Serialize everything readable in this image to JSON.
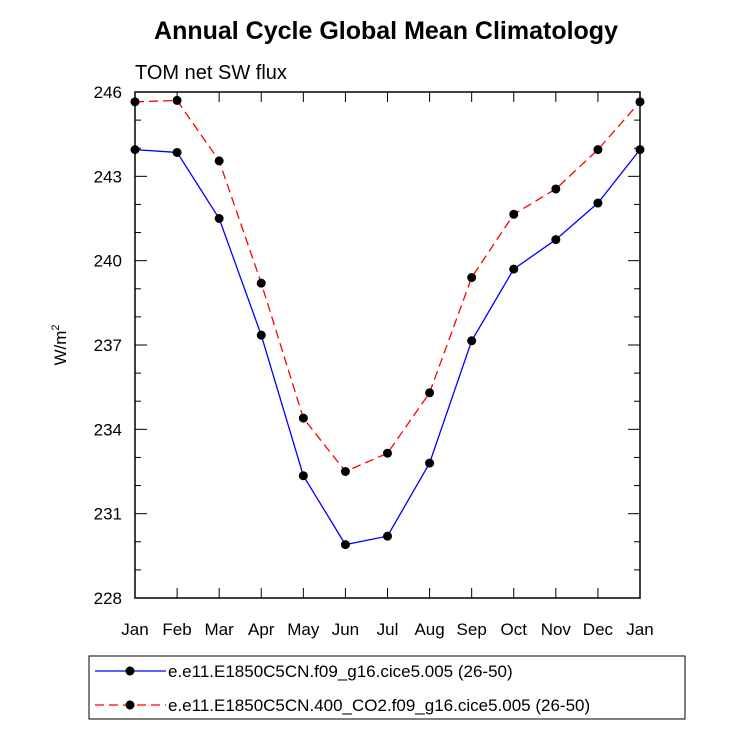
{
  "chart_data": {
    "type": "line",
    "title": "Annual Cycle Global Mean Climatology",
    "subtitle": "TOM net SW flux",
    "ylabel": "W/m",
    "ylabel_sup": "2",
    "xlabel": "",
    "categories": [
      "Jan",
      "Feb",
      "Mar",
      "Apr",
      "May",
      "Jun",
      "Jul",
      "Aug",
      "Sep",
      "Oct",
      "Nov",
      "Dec",
      "Jan"
    ],
    "ylim": [
      228,
      246
    ],
    "yticks": [
      228,
      231,
      234,
      237,
      240,
      243,
      246
    ],
    "grid": false,
    "legend_position": "bottom",
    "series": [
      {
        "name": "e.e11.E1850C5CN.f09_g16.cice5.005 (26-50)",
        "color": "#0000ff",
        "dash": "solid",
        "marker": "circle",
        "values": [
          243.95,
          243.85,
          241.5,
          237.35,
          232.35,
          229.9,
          230.2,
          232.8,
          237.15,
          239.7,
          240.75,
          242.05,
          243.95
        ]
      },
      {
        "name": "e.e11.E1850C5CN.400_CO2.f09_g16.cice5.005 (26-50)",
        "color": "#ff0000",
        "dash": "dashed",
        "marker": "circle",
        "values": [
          245.65,
          245.7,
          243.55,
          239.2,
          234.4,
          232.5,
          233.15,
          235.3,
          239.4,
          241.65,
          242.55,
          243.95,
          245.65
        ]
      }
    ]
  }
}
